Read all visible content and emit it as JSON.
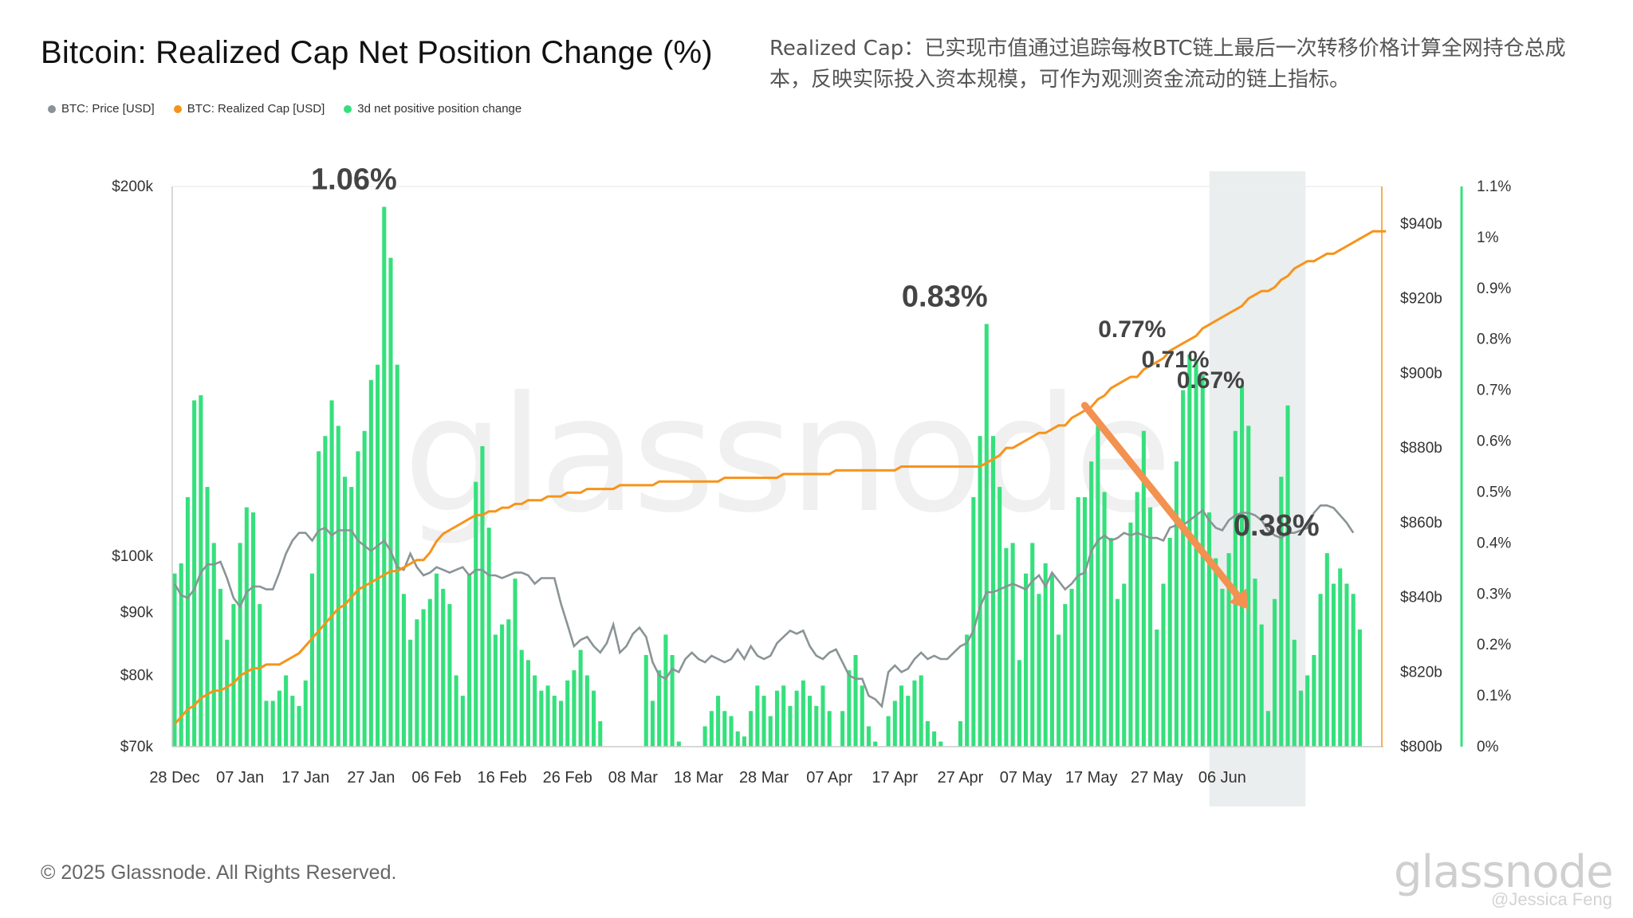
{
  "title": "Bitcoin: Realized Cap Net Position Change (%)",
  "note": "Realized Cap：已实现市值通过追踪每枚BTC链上最后一次转移价格计算全网持仓总成本，反映实际投入资本规模，可作为观测资金流动的链上指标。",
  "copyright": "© 2025 Glassnode. All Rights Reserved.",
  "watermark": "glassnode",
  "brand_logo": "glassnode",
  "author_mark": "@Jessica Feng",
  "legend": [
    {
      "label": "BTC: Price [USD]",
      "color": "#8a9496"
    },
    {
      "label": "BTC: Realized Cap [USD]",
      "color": "#f7931a"
    },
    {
      "label": "3d net positive position change",
      "color": "#35e07c"
    }
  ],
  "chart_data": {
    "type": "bar",
    "x_ticks": [
      "28 Dec",
      "07 Jan",
      "17 Jan",
      "27 Jan",
      "06 Feb",
      "16 Feb",
      "26 Feb",
      "08 Mar",
      "18 Mar",
      "28 Mar",
      "07 Apr",
      "17 Apr",
      "27 Apr",
      "07 May",
      "17 May",
      "27 May",
      "06 Jun"
    ],
    "x_start": "2024-12-28",
    "y_left": {
      "label": "BTC: Price [USD]",
      "scale": "log",
      "range": [
        70000,
        200000
      ],
      "ticks": [
        "$200k",
        "$100k",
        "$90k",
        "$80k",
        "$70k"
      ],
      "tick_values": [
        200000,
        100000,
        90000,
        80000,
        70000
      ]
    },
    "y_mid": {
      "label": "BTC: Realized Cap [USD]",
      "range": [
        800,
        950
      ],
      "ticks": [
        "$940b",
        "$920b",
        "$900b",
        "$880b",
        "$860b",
        "$840b",
        "$820b",
        "$800b"
      ],
      "tick_values": [
        940,
        920,
        900,
        880,
        860,
        840,
        820,
        800
      ]
    },
    "y_right": {
      "label": "3d net positive position change",
      "range": [
        0,
        1.1
      ],
      "ticks": [
        "1.1%",
        "1%",
        "0.9%",
        "0.8%",
        "0.7%",
        "0.6%",
        "0.5%",
        "0.4%",
        "0.3%",
        "0.2%",
        "0.1%",
        "0%"
      ],
      "tick_values": [
        1.1,
        1.0,
        0.9,
        0.8,
        0.7,
        0.6,
        0.5,
        0.4,
        0.3,
        0.2,
        0.1,
        0
      ]
    },
    "annotations": [
      {
        "text": "1.06%",
        "date": "2025-01-25",
        "value": 1.06
      },
      {
        "text": "0.83%",
        "date": "2025-04-24",
        "value": 0.83
      },
      {
        "text": "0.77%",
        "date": "2025-05-22",
        "value": 0.77
      },
      {
        "text": "0.71%",
        "date": "2025-05-28",
        "value": 0.71
      },
      {
        "text": "0.67%",
        "date": "2025-06-03",
        "value": 0.67
      },
      {
        "text": "0.38%",
        "date": "2025-06-10",
        "value": 0.38
      }
    ],
    "highlight_range": [
      "2025-06-05",
      "2025-06-17"
    ],
    "trend_arrow": {
      "from": [
        "2025-05-16",
        0.67
      ],
      "to": [
        "2025-06-10",
        0.27
      ]
    },
    "series": [
      {
        "name": "3d net positive position change",
        "color": "#35e07c",
        "start": "2024-12-28",
        "values": [
          0.34,
          0.36,
          0.49,
          0.68,
          0.69,
          0.51,
          0.4,
          0.31,
          0.21,
          0.28,
          0.4,
          0.47,
          0.46,
          0.28,
          0.09,
          0.09,
          0.11,
          0.14,
          0.1,
          0.08,
          0.13,
          0.34,
          0.58,
          0.61,
          0.68,
          0.63,
          0.53,
          0.51,
          0.58,
          0.62,
          0.72,
          0.75,
          1.06,
          0.96,
          0.75,
          0.3,
          0.21,
          0.25,
          0.27,
          0.29,
          0.34,
          0.31,
          0.28,
          0.14,
          0.1,
          0.34,
          0.52,
          0.59,
          0.43,
          0.22,
          0.24,
          0.25,
          0.33,
          0.19,
          0.17,
          0.14,
          0.11,
          0.12,
          0.1,
          0.09,
          0.13,
          0.15,
          0.19,
          0.14,
          0.11,
          0.05,
          0.0,
          0.0,
          0.0,
          0.0,
          0.0,
          0.0,
          0.18,
          0.09,
          0.15,
          0.22,
          0.18,
          0.01,
          0.0,
          0.0,
          0.0,
          0.04,
          0.07,
          0.1,
          0.07,
          0.06,
          0.03,
          0.02,
          0.07,
          0.12,
          0.1,
          0.06,
          0.11,
          0.12,
          0.08,
          0.11,
          0.13,
          0.1,
          0.08,
          0.12,
          0.07,
          0.0,
          0.07,
          0.15,
          0.18,
          0.12,
          0.04,
          0.01,
          0.0,
          0.06,
          0.09,
          0.12,
          0.1,
          0.13,
          0.14,
          0.05,
          0.03,
          0.01,
          0.0,
          0.0,
          0.05,
          0.22,
          0.49,
          0.61,
          0.83,
          0.61,
          0.51,
          0.39,
          0.4,
          0.17,
          0.34,
          0.4,
          0.3,
          0.36,
          0.34,
          0.22,
          0.28,
          0.31,
          0.49,
          0.49,
          0.56,
          0.63,
          0.5,
          0.41,
          0.29,
          0.32,
          0.44,
          0.5,
          0.62,
          0.47,
          0.23,
          0.32,
          0.41,
          0.56,
          0.7,
          0.77,
          0.76,
          0.73,
          0.46,
          0.37,
          0.31,
          0.38,
          0.62,
          0.71,
          0.63,
          0.33,
          0.24,
          0.07,
          0.29,
          0.53,
          0.67,
          0.21,
          0.11,
          0.14,
          0.18,
          0.3,
          0.38,
          0.32,
          0.35,
          0.32,
          0.3,
          0.23
        ]
      },
      {
        "name": "BTC: Price [USD]",
        "color": "#8a9496",
        "start": "2024-12-28",
        "unit": "USD",
        "values": [
          95000,
          93000,
          92500,
          94000,
          97000,
          98500,
          98500,
          99000,
          96000,
          92500,
          91000,
          93500,
          94500,
          94500,
          94000,
          94000,
          97000,
          100500,
          103000,
          104500,
          104500,
          103000,
          105000,
          105500,
          104000,
          105000,
          105000,
          105000,
          103000,
          102000,
          101000,
          102000,
          103000,
          101000,
          98000,
          97500,
          100500,
          98000,
          96500,
          97000,
          98000,
          97500,
          97000,
          97500,
          98000,
          96500,
          97500,
          97500,
          96500,
          96500,
          96000,
          96500,
          97000,
          97000,
          96500,
          95000,
          96000,
          96000,
          96000,
          91500,
          88000,
          84500,
          85500,
          86000,
          84500,
          83500,
          85000,
          88000,
          83500,
          84500,
          86500,
          87500,
          86000,
          82000,
          80000,
          79500,
          81000,
          80500,
          82500,
          83500,
          82500,
          82000,
          83000,
          82500,
          82000,
          82500,
          84000,
          82500,
          84500,
          83000,
          82500,
          83000,
          85000,
          86000,
          87000,
          86500,
          87000,
          84500,
          83000,
          82500,
          83500,
          84000,
          82000,
          80000,
          79500,
          79500,
          77000,
          76500,
          75500,
          80500,
          81500,
          80500,
          81000,
          82500,
          83500,
          82500,
          83000,
          82500,
          82500,
          83500,
          84500,
          85000,
          87000,
          91000,
          93500,
          93500,
          94000,
          94500,
          95000,
          94500,
          94000,
          95500,
          96500,
          94500,
          97000,
          95500,
          94000,
          95000,
          96500,
          97000,
          101000,
          103000,
          104000,
          103000,
          103500,
          104500,
          104000,
          104500,
          104000,
          103500,
          103500,
          103000,
          105500,
          106000,
          106000,
          107000,
          108000,
          109000,
          107000,
          105500,
          105000,
          107000,
          108000,
          108500,
          108500,
          108000,
          107000,
          105000,
          104000,
          103500,
          104500,
          104500,
          105000,
          105500,
          108500,
          110000,
          110000,
          109500,
          108000,
          106500,
          104500
        ]
      },
      {
        "name": "BTC: Realized Cap [USD]",
        "color": "#f7931a",
        "start": "2024-12-28",
        "unit": "USD billions",
        "values": [
          806,
          808,
          810,
          811,
          813,
          814,
          815,
          815,
          816,
          817,
          819,
          820,
          821,
          821,
          822,
          822,
          822,
          823,
          824,
          825,
          827,
          829,
          831,
          833,
          835,
          837,
          838,
          840,
          842,
          843,
          844,
          845,
          846,
          847,
          847,
          848,
          849,
          850,
          850,
          852,
          855,
          857,
          858,
          859,
          860,
          861,
          862,
          862,
          863,
          863,
          864,
          864,
          865,
          865,
          866,
          866,
          866,
          867,
          867,
          867,
          868,
          868,
          868,
          869,
          869,
          869,
          869,
          869,
          870,
          870,
          870,
          870,
          870,
          870,
          871,
          871,
          871,
          871,
          871,
          871,
          871,
          871,
          871,
          871,
          872,
          872,
          872,
          872,
          872,
          872,
          872,
          872,
          872,
          873,
          873,
          873,
          873,
          873,
          873,
          873,
          873,
          874,
          874,
          874,
          874,
          874,
          874,
          874,
          874,
          874,
          874,
          875,
          875,
          875,
          875,
          875,
          875,
          875,
          875,
          875,
          875,
          875,
          875,
          875,
          876,
          877,
          878,
          880,
          880,
          881,
          882,
          883,
          884,
          884,
          885,
          886,
          886,
          888,
          889,
          890,
          891,
          893,
          894,
          896,
          897,
          898,
          899,
          899,
          901,
          902,
          903,
          904,
          906,
          907,
          908,
          909,
          910,
          912,
          913,
          914,
          915,
          916,
          917,
          918,
          920,
          921,
          922,
          922,
          923,
          925,
          926,
          928,
          929,
          930,
          930,
          931,
          932,
          932,
          933,
          934,
          935,
          936,
          937,
          938,
          938,
          938
        ]
      }
    ]
  }
}
